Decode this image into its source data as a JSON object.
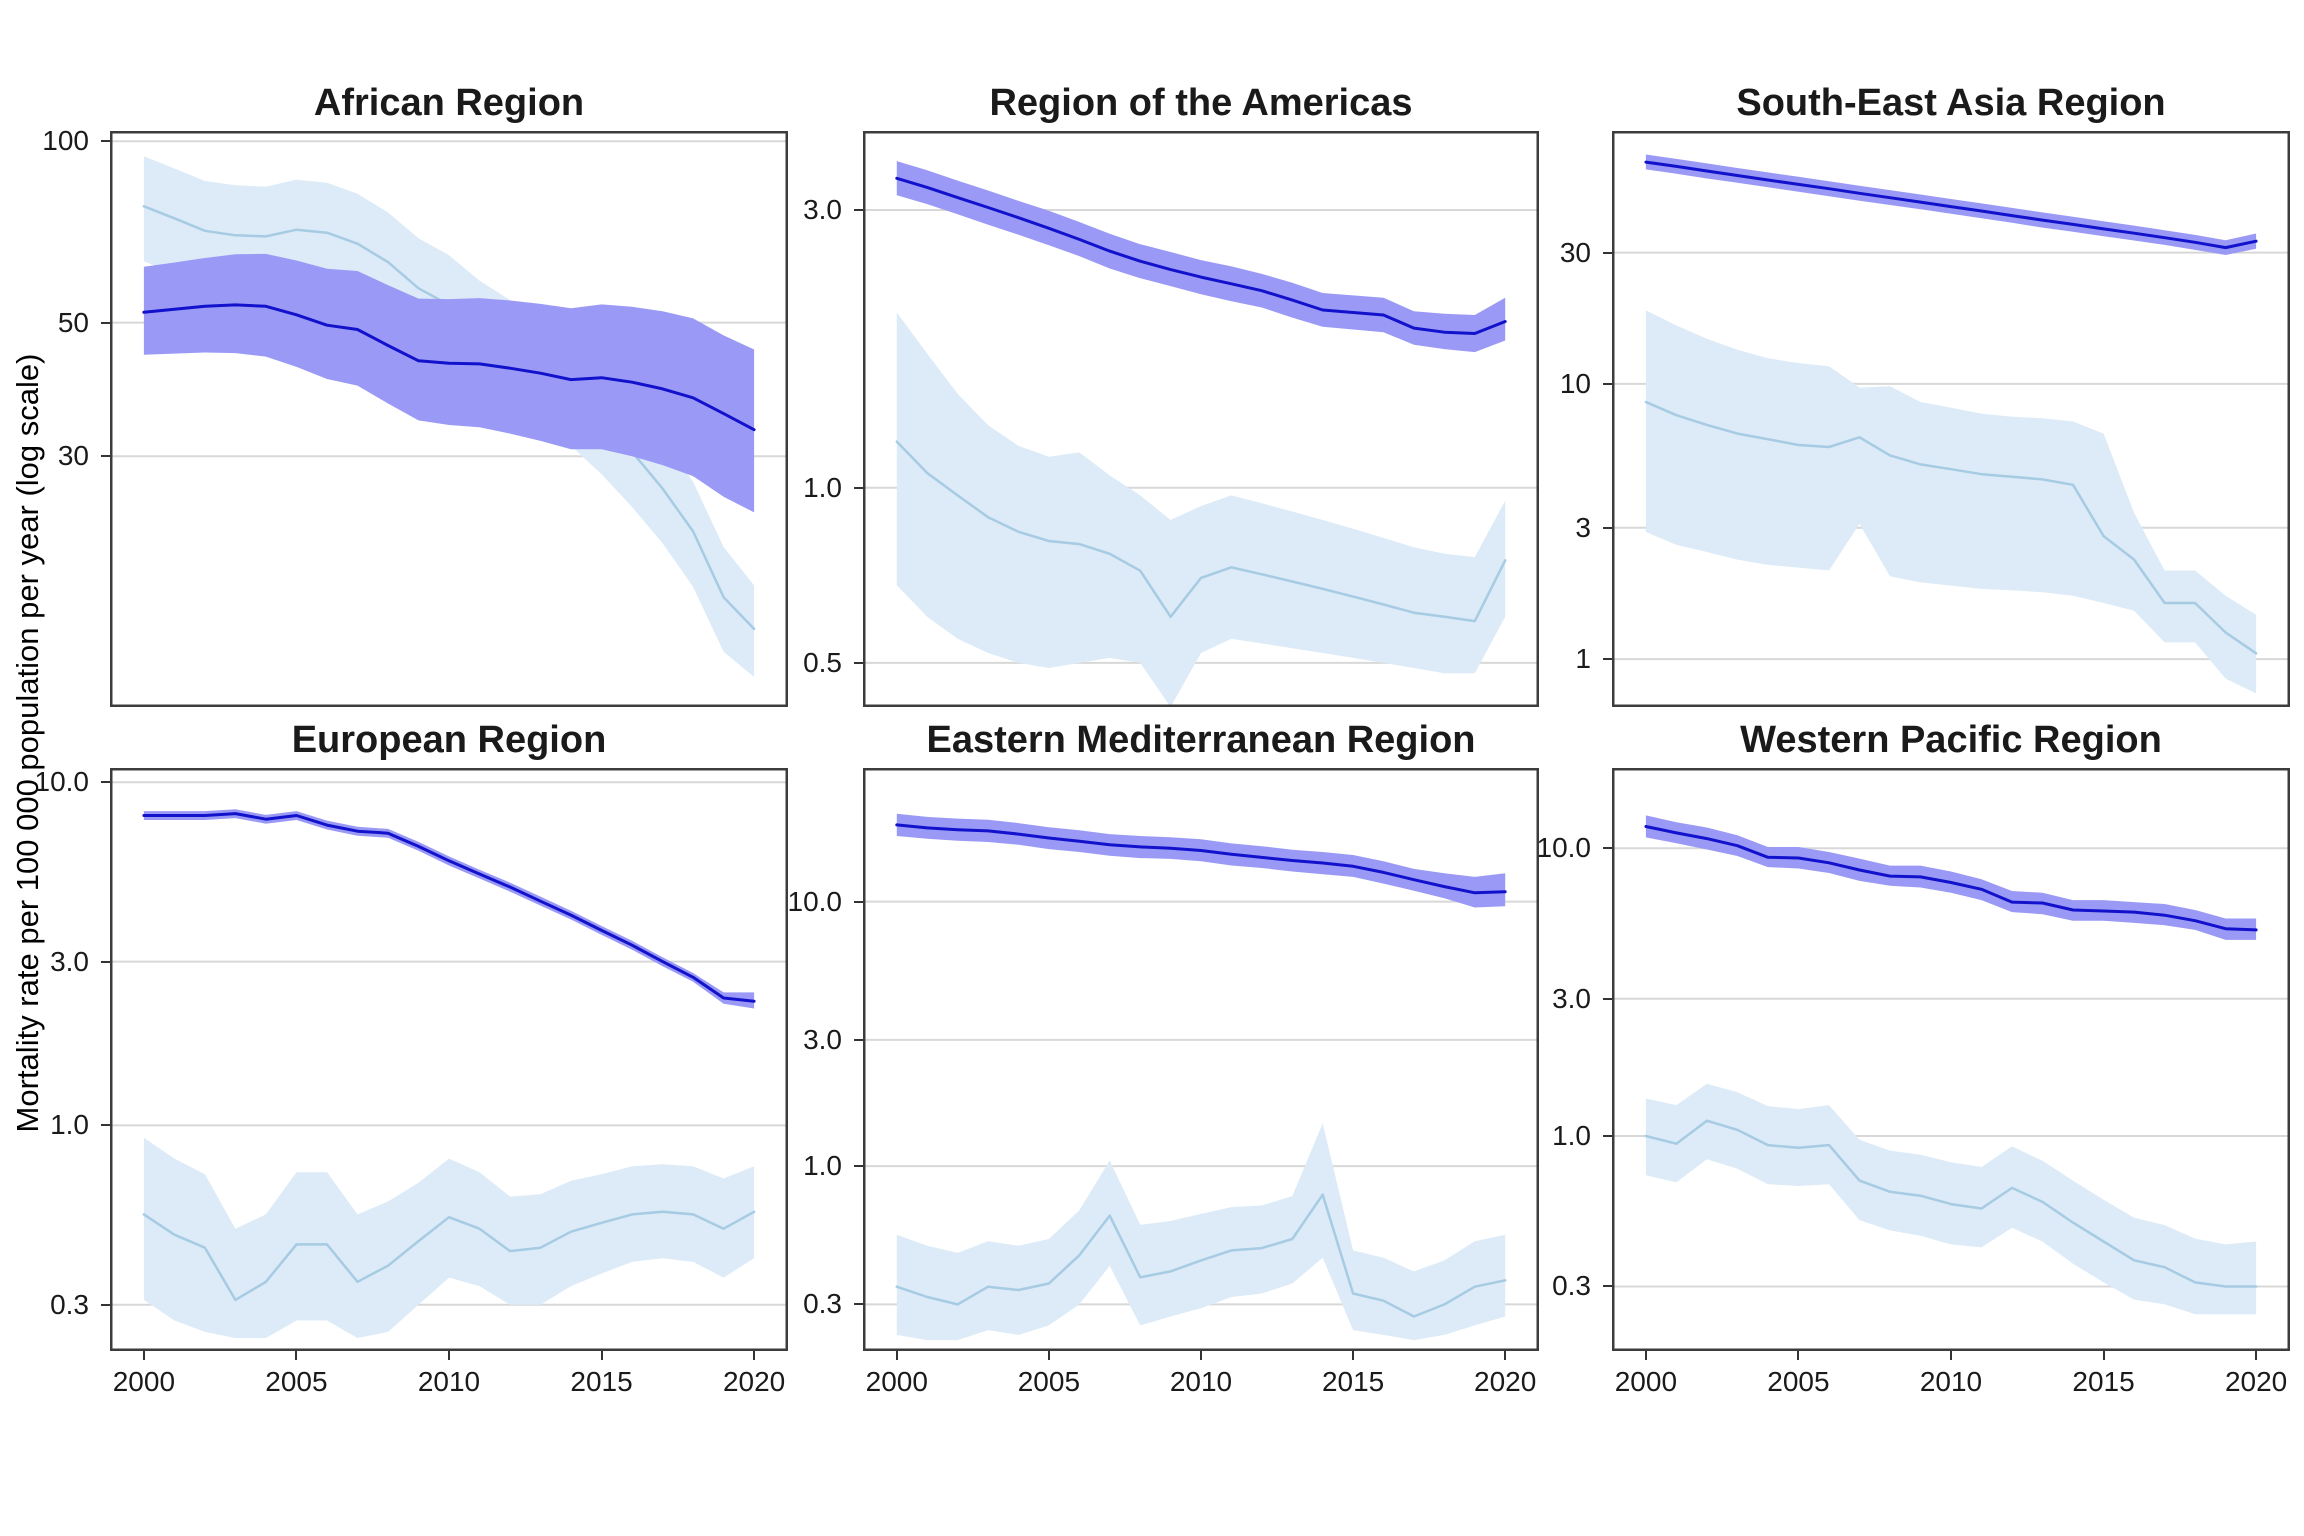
{
  "figure": {
    "y_axis_label": "Mortality rate per 100 000 population per year (log scale)",
    "x_tick_labels": [
      "2000",
      "2005",
      "2010",
      "2015",
      "2020"
    ],
    "years": [
      2000,
      2001,
      2002,
      2003,
      2004,
      2005,
      2006,
      2007,
      2008,
      2009,
      2010,
      2011,
      2012,
      2013,
      2014,
      2015,
      2016,
      2017,
      2018,
      2019,
      2020
    ]
  },
  "colors": {
    "dark_line": "#1212cc",
    "dark_band": "#9a9af6",
    "light_line": "#a6cbe3",
    "light_band": "#dcebf7",
    "gridline": "#d8d8d8",
    "panel_border": "#3c3c3c",
    "text": "#1a1a1a"
  },
  "chart_data": [
    {
      "type": "line",
      "title": "African Region",
      "x_range": [
        2000,
        2020
      ],
      "ylabel": "Mortality rate per 100 000 population per year (log scale)",
      "yscale": "log",
      "ylim": [
        11.5,
        104
      ],
      "ytick_values": [
        100,
        50,
        30
      ],
      "ytick_labels": [
        "100",
        "50",
        "30"
      ],
      "grid": "major-horizontal",
      "legend": "none",
      "series": [
        {
          "name": "dark_blue_with_band",
          "values": [
            52,
            52.6,
            53.2,
            53.5,
            53.2,
            51.5,
            49.5,
            48.7,
            45.8,
            43.2,
            42.8,
            42.7,
            42,
            41.2,
            40.2,
            40.5,
            39.8,
            38.8,
            37.5,
            35.3,
            33.2
          ],
          "lower": [
            44.2,
            44.4,
            44.6,
            44.5,
            43.9,
            42.2,
            40.3,
            39.3,
            36.7,
            34.4,
            33.8,
            33.5,
            32.7,
            31.8,
            30.8,
            30.8,
            30,
            29,
            27.8,
            25.7,
            24.2
          ],
          "upper": [
            61.9,
            62.9,
            64,
            64.9,
            65,
            63.4,
            61.4,
            60.9,
            57.7,
            54.8,
            54.7,
            54.9,
            54.4,
            53.7,
            52.8,
            53.6,
            53.1,
            52.2,
            50.8,
            47.6,
            45.1
          ]
        },
        {
          "name": "light_blue_with_band",
          "values": [
            78,
            74.5,
            71,
            69.8,
            69.5,
            71.3,
            70.5,
            67.6,
            63,
            57,
            53.5,
            48.5,
            45,
            42.7,
            38.5,
            34.5,
            30.5,
            26.5,
            22.5,
            17.5,
            15.5
          ],
          "lower": [
            63.2,
            60.3,
            57.5,
            56.5,
            56.3,
            57.8,
            57.1,
            54.8,
            51,
            46.2,
            43.4,
            39.3,
            36.5,
            34.6,
            31.2,
            28,
            24.7,
            21.5,
            18.2,
            14.2,
            12.9
          ],
          "upper": [
            94.4,
            90.1,
            85.9,
            84.5,
            84.1,
            86.3,
            85.3,
            81.8,
            76.2,
            69,
            64.7,
            58.7,
            54.5,
            51.7,
            46.6,
            41.7,
            36.9,
            32.1,
            27.2,
            21.2,
            18.3
          ]
        }
      ]
    },
    {
      "type": "line",
      "title": "Region of the Americas",
      "x_range": [
        2000,
        2020
      ],
      "yscale": "log",
      "ylim": [
        0.42,
        4.1
      ],
      "ytick_values": [
        3,
        1,
        0.5
      ],
      "ytick_labels": [
        "3.0",
        "1.0",
        "0.5"
      ],
      "grid": "major-horizontal",
      "legend": "none",
      "series": [
        {
          "name": "dark_blue_with_band",
          "values": [
            3.4,
            3.28,
            3.15,
            3.03,
            2.91,
            2.79,
            2.67,
            2.55,
            2.45,
            2.37,
            2.3,
            2.24,
            2.18,
            2.1,
            2.02,
            2,
            1.98,
            1.88,
            1.85,
            1.84,
            1.93
          ],
          "lower": [
            3.18,
            3.07,
            2.95,
            2.83,
            2.72,
            2.61,
            2.5,
            2.38,
            2.29,
            2.22,
            2.15,
            2.09,
            2.04,
            1.96,
            1.89,
            1.87,
            1.85,
            1.76,
            1.73,
            1.71,
            1.79
          ],
          "upper": [
            3.64,
            3.51,
            3.37,
            3.24,
            3.11,
            2.99,
            2.86,
            2.73,
            2.62,
            2.54,
            2.46,
            2.4,
            2.33,
            2.25,
            2.16,
            2.14,
            2.12,
            2.01,
            1.99,
            1.98,
            2.12
          ]
        },
        {
          "name": "light_blue_with_band",
          "values": [
            1.2,
            1.06,
            0.97,
            0.89,
            0.84,
            0.81,
            0.8,
            0.77,
            0.72,
            0.6,
            0.7,
            0.73,
            0.71,
            0.69,
            0.67,
            0.65,
            0.63,
            0.61,
            0.6,
            0.59,
            0.75
          ],
          "lower": [
            0.68,
            0.6,
            0.55,
            0.52,
            0.5,
            0.49,
            0.5,
            0.51,
            0.5,
            0.42,
            0.52,
            0.55,
            0.54,
            0.53,
            0.52,
            0.51,
            0.5,
            0.49,
            0.48,
            0.48,
            0.6
          ],
          "upper": [
            2,
            1.7,
            1.45,
            1.28,
            1.18,
            1.13,
            1.15,
            1.05,
            0.97,
            0.88,
            0.93,
            0.97,
            0.94,
            0.91,
            0.88,
            0.85,
            0.82,
            0.79,
            0.77,
            0.76,
            0.95
          ]
        }
      ]
    },
    {
      "type": "line",
      "title": "South-East Asia Region",
      "x_range": [
        2000,
        2020
      ],
      "yscale": "log",
      "ylim": [
        0.67,
        83
      ],
      "ytick_values": [
        30,
        10,
        3,
        1
      ],
      "ytick_labels": [
        "30",
        "10",
        "3",
        "1"
      ],
      "grid": "major-horizontal",
      "legend": "none",
      "series": [
        {
          "name": "dark_blue_with_band",
          "values": [
            64,
            61.7,
            59.4,
            57.2,
            55.1,
            53.1,
            51.2,
            49.3,
            47.5,
            45.8,
            44.1,
            42.5,
            40.9,
            39.4,
            38,
            36.6,
            35.3,
            34,
            32.7,
            31.3,
            33
          ],
          "lower": [
            60.2,
            58,
            55.8,
            53.8,
            51.8,
            49.9,
            48.1,
            46.3,
            44.7,
            43.1,
            41.5,
            40,
            38.5,
            37,
            35.7,
            34.4,
            33.2,
            32,
            30.7,
            29.4,
            31
          ],
          "upper": [
            68.2,
            65.7,
            63.3,
            60.9,
            58.7,
            56.6,
            54.5,
            52.5,
            50.6,
            48.8,
            47,
            45.3,
            43.6,
            42,
            40.5,
            39,
            37.6,
            36.2,
            34.8,
            33.3,
            35.2
          ]
        },
        {
          "name": "light_blue_with_band",
          "values": [
            8.6,
            7.7,
            7.1,
            6.6,
            6.3,
            6,
            5.9,
            6.4,
            5.5,
            5.1,
            4.9,
            4.7,
            4.6,
            4.5,
            4.3,
            2.8,
            2.3,
            1.6,
            1.6,
            1.25,
            1.05
          ],
          "lower": [
            2.9,
            2.6,
            2.45,
            2.3,
            2.2,
            2.15,
            2.1,
            3.1,
            2,
            1.9,
            1.85,
            1.8,
            1.78,
            1.75,
            1.7,
            1.6,
            1.5,
            1.15,
            1.15,
            0.85,
            0.75
          ],
          "upper": [
            18.5,
            16.3,
            14.6,
            13.3,
            12.4,
            11.9,
            11.6,
            9.7,
            9.8,
            8.6,
            8.2,
            7.8,
            7.6,
            7.5,
            7.3,
            6.6,
            3.4,
            2.1,
            2.1,
            1.7,
            1.45
          ]
        }
      ]
    },
    {
      "type": "line",
      "title": "European Region",
      "x_range": [
        2000,
        2020
      ],
      "yscale": "log",
      "ylim": [
        0.22,
        11
      ],
      "ytick_values": [
        10,
        3,
        1,
        0.3
      ],
      "ytick_labels": [
        "10.0",
        "3.0",
        "1.0",
        "0.3"
      ],
      "grid": "major-horizontal",
      "legend": "none",
      "series": [
        {
          "name": "dark_blue_with_band",
          "values": [
            8,
            8,
            8,
            8.1,
            7.8,
            8,
            7.5,
            7.2,
            7.1,
            6.5,
            5.9,
            5.4,
            4.95,
            4.5,
            4.1,
            3.7,
            3.35,
            3,
            2.7,
            2.35,
            2.3
          ],
          "lower": [
            7.76,
            7.76,
            7.76,
            7.86,
            7.57,
            7.76,
            7.28,
            6.98,
            6.89,
            6.31,
            5.72,
            5.24,
            4.8,
            4.37,
            3.98,
            3.59,
            3.25,
            2.91,
            2.62,
            2.26,
            2.19
          ],
          "upper": [
            8.24,
            8.24,
            8.24,
            8.34,
            8.03,
            8.24,
            7.73,
            7.42,
            7.31,
            6.7,
            6.08,
            5.56,
            5.1,
            4.64,
            4.22,
            3.81,
            3.45,
            3.09,
            2.78,
            2.44,
            2.44
          ]
        },
        {
          "name": "light_blue_with_band",
          "values": [
            0.55,
            0.48,
            0.44,
            0.31,
            0.35,
            0.45,
            0.45,
            0.35,
            0.39,
            0.46,
            0.54,
            0.5,
            0.43,
            0.44,
            0.49,
            0.52,
            0.55,
            0.56,
            0.55,
            0.5,
            0.56
          ],
          "lower": [
            0.31,
            0.27,
            0.25,
            0.24,
            0.24,
            0.27,
            0.27,
            0.24,
            0.25,
            0.3,
            0.36,
            0.34,
            0.3,
            0.3,
            0.34,
            0.37,
            0.4,
            0.41,
            0.4,
            0.36,
            0.41
          ],
          "upper": [
            0.92,
            0.8,
            0.72,
            0.5,
            0.55,
            0.73,
            0.73,
            0.55,
            0.6,
            0.68,
            0.8,
            0.73,
            0.62,
            0.63,
            0.69,
            0.72,
            0.76,
            0.77,
            0.76,
            0.7,
            0.76
          ]
        }
      ]
    },
    {
      "type": "line",
      "title": "Eastern Mediterranean Region",
      "x_range": [
        2000,
        2020
      ],
      "yscale": "log",
      "ylim": [
        0.2,
        32
      ],
      "ytick_values": [
        10,
        3,
        1,
        0.3
      ],
      "ytick_labels": [
        "10.0",
        "3.0",
        "1.0",
        "0.3"
      ],
      "grid": "major-horizontal",
      "legend": "none",
      "series": [
        {
          "name": "dark_blue_with_band",
          "values": [
            19.5,
            19,
            18.7,
            18.5,
            18,
            17.4,
            16.9,
            16.4,
            16.1,
            15.9,
            15.6,
            15.1,
            14.7,
            14.3,
            14,
            13.6,
            12.9,
            12.1,
            11.4,
            10.8,
            10.9
          ],
          "lower": [
            17.7,
            17.3,
            17,
            16.8,
            16.4,
            15.8,
            15.4,
            14.9,
            14.6,
            14.5,
            14.2,
            13.7,
            13.4,
            13,
            12.7,
            12.4,
            11.7,
            11,
            10.3,
            9.5,
            9.6
          ],
          "upper": [
            21.5,
            20.9,
            20.6,
            20.4,
            19.8,
            19.1,
            18.6,
            18,
            17.7,
            17.5,
            17.2,
            16.6,
            16.2,
            15.7,
            15.4,
            15,
            14.2,
            13.3,
            12.8,
            12.4,
            12.8
          ]
        },
        {
          "name": "light_blue_with_band",
          "values": [
            0.35,
            0.32,
            0.3,
            0.35,
            0.34,
            0.36,
            0.46,
            0.65,
            0.38,
            0.4,
            0.44,
            0.48,
            0.49,
            0.53,
            0.78,
            0.33,
            0.31,
            0.27,
            0.3,
            0.35,
            0.37
          ],
          "lower": [
            0.23,
            0.22,
            0.22,
            0.24,
            0.23,
            0.25,
            0.3,
            0.42,
            0.25,
            0.27,
            0.29,
            0.32,
            0.33,
            0.36,
            0.45,
            0.24,
            0.23,
            0.22,
            0.23,
            0.25,
            0.27
          ],
          "upper": [
            0.55,
            0.5,
            0.47,
            0.52,
            0.5,
            0.53,
            0.68,
            1.05,
            0.6,
            0.62,
            0.66,
            0.7,
            0.71,
            0.77,
            1.45,
            0.48,
            0.45,
            0.4,
            0.44,
            0.52,
            0.55
          ]
        }
      ]
    },
    {
      "type": "line",
      "title": "Western Pacific Region",
      "x_range": [
        2000,
        2020
      ],
      "yscale": "log",
      "ylim": [
        0.179,
        19
      ],
      "ytick_values": [
        10,
        3,
        1,
        0.3
      ],
      "ytick_labels": [
        "10.0",
        "3.0",
        "1.0",
        "0.3"
      ],
      "grid": "major-horizontal",
      "legend": "none",
      "series": [
        {
          "name": "dark_blue_with_band",
          "values": [
            11.9,
            11.3,
            10.8,
            10.2,
            9.3,
            9.25,
            8.9,
            8.4,
            8,
            7.95,
            7.6,
            7.2,
            6.5,
            6.45,
            6.1,
            6.05,
            6,
            5.85,
            5.6,
            5.25,
            5.2
          ],
          "lower": [
            10.9,
            10.4,
            9.9,
            9.4,
            8.6,
            8.5,
            8.2,
            7.7,
            7.4,
            7.3,
            7,
            6.6,
            6,
            5.9,
            5.6,
            5.6,
            5.5,
            5.4,
            5.2,
            4.8,
            4.8
          ],
          "upper": [
            13,
            12.3,
            11.8,
            11.1,
            10.1,
            10.1,
            9.7,
            9.2,
            8.7,
            8.7,
            8.3,
            7.8,
            7.1,
            7,
            6.6,
            6.6,
            6.5,
            6.4,
            6.1,
            5.7,
            5.7
          ]
        },
        {
          "name": "light_blue_with_band",
          "values": [
            1,
            0.94,
            1.13,
            1.05,
            0.93,
            0.91,
            0.93,
            0.7,
            0.64,
            0.62,
            0.58,
            0.56,
            0.66,
            0.59,
            0.5,
            0.43,
            0.37,
            0.35,
            0.31,
            0.3,
            0.3
          ],
          "lower": [
            0.73,
            0.69,
            0.83,
            0.77,
            0.68,
            0.67,
            0.68,
            0.51,
            0.47,
            0.45,
            0.42,
            0.41,
            0.48,
            0.43,
            0.36,
            0.31,
            0.27,
            0.26,
            0.24,
            0.24,
            0.24
          ],
          "upper": [
            1.35,
            1.28,
            1.52,
            1.42,
            1.27,
            1.24,
            1.28,
            0.97,
            0.89,
            0.86,
            0.81,
            0.78,
            0.92,
            0.82,
            0.7,
            0.6,
            0.52,
            0.49,
            0.44,
            0.42,
            0.43
          ]
        }
      ]
    }
  ]
}
